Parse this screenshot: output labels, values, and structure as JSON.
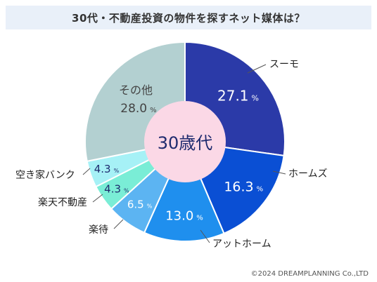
{
  "title": "30代・不動産投資の物件を探すネット媒体は？",
  "center_label": "30歳代",
  "footer": "©2024 DREAMPLANNING Co.,LTD",
  "chart_data": {
    "type": "pie",
    "title": "30代・不動産投資の物件を探すネット媒体は？",
    "unit": "%",
    "slices": [
      {
        "name": "スーモ",
        "value": 27.1,
        "color": "#2b3aa8"
      },
      {
        "name": "ホームズ",
        "value": 16.3,
        "color": "#0a4fd4"
      },
      {
        "name": "アットホーム",
        "value": 13.0,
        "color": "#1f8fee"
      },
      {
        "name": "楽待",
        "value": 6.5,
        "color": "#5cb4f2"
      },
      {
        "name": "楽天不動産",
        "value": 4.3,
        "color": "#7aedd6"
      },
      {
        "name": "空き家バンク",
        "value": 4.3,
        "color": "#a6f1f6"
      },
      {
        "name": "その他",
        "value": 28.0,
        "color": "#b3d0d1"
      }
    ]
  }
}
